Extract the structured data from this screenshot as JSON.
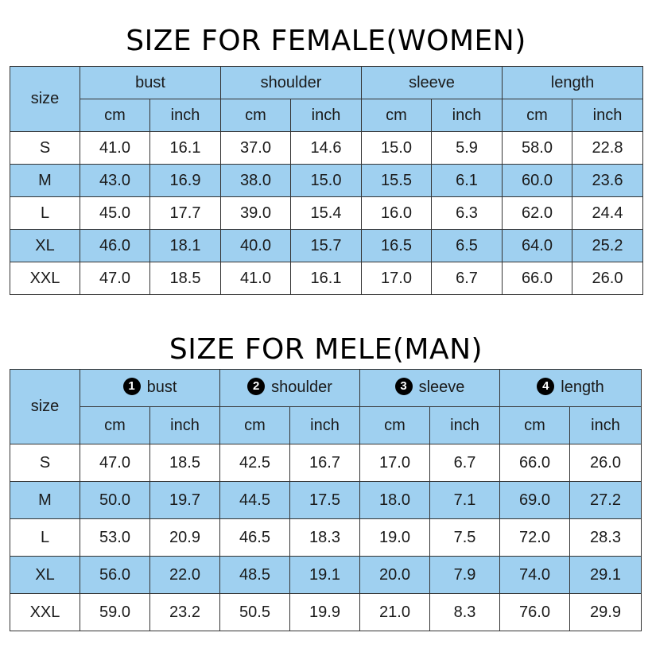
{
  "female": {
    "title": "SIZE FOR FEMALE(WOMEN)",
    "size_header": "size",
    "groups": [
      {
        "label": "bust"
      },
      {
        "label": "shoulder"
      },
      {
        "label": "sleeve"
      },
      {
        "label": "length"
      }
    ],
    "units": [
      "cm",
      "inch",
      "cm",
      "inch",
      "cm",
      "inch",
      "cm",
      "inch"
    ],
    "rows": [
      {
        "size": "S",
        "values": [
          "41.0",
          "16.1",
          "37.0",
          "14.6",
          "15.0",
          "5.9",
          "58.0",
          "22.8"
        ]
      },
      {
        "size": "M",
        "values": [
          "43.0",
          "16.9",
          "38.0",
          "15.0",
          "15.5",
          "6.1",
          "60.0",
          "23.6"
        ]
      },
      {
        "size": "L",
        "values": [
          "45.0",
          "17.7",
          "39.0",
          "15.4",
          "16.0",
          "6.3",
          "62.0",
          "24.4"
        ]
      },
      {
        "size": "XL",
        "values": [
          "46.0",
          "18.1",
          "40.0",
          "15.7",
          "16.5",
          "6.5",
          "64.0",
          "25.2"
        ]
      },
      {
        "size": "XXL",
        "values": [
          "47.0",
          "18.5",
          "41.0",
          "16.1",
          "17.0",
          "6.7",
          "66.0",
          "26.0"
        ]
      }
    ]
  },
  "male": {
    "title": "SIZE FOR MELE(MAN)",
    "size_header": "size",
    "groups": [
      {
        "number": "1",
        "label": "bust"
      },
      {
        "number": "2",
        "label": "shoulder"
      },
      {
        "number": "3",
        "label": "sleeve"
      },
      {
        "number": "4",
        "label": "length"
      }
    ],
    "units": [
      "cm",
      "inch",
      "cm",
      "inch",
      "cm",
      "inch",
      "cm",
      "inch"
    ],
    "rows": [
      {
        "size": "S",
        "values": [
          "47.0",
          "18.5",
          "42.5",
          "16.7",
          "17.0",
          "6.7",
          "66.0",
          "26.0"
        ]
      },
      {
        "size": "M",
        "values": [
          "50.0",
          "19.7",
          "44.5",
          "17.5",
          "18.0",
          "7.1",
          "69.0",
          "27.2"
        ]
      },
      {
        "size": "L",
        "values": [
          "53.0",
          "20.9",
          "46.5",
          "18.3",
          "19.0",
          "7.5",
          "72.0",
          "28.3"
        ]
      },
      {
        "size": "XL",
        "values": [
          "56.0",
          "22.0",
          "48.5",
          "19.1",
          "20.0",
          "7.9",
          "74.0",
          "29.1"
        ]
      },
      {
        "size": "XXL",
        "values": [
          "59.0",
          "23.2",
          "50.5",
          "19.9",
          "21.0",
          "8.3",
          "76.0",
          "29.9"
        ]
      }
    ]
  },
  "colors": {
    "header_blue": "#9fd0f0",
    "row_blue": "#9fd0f0",
    "border": "#333333",
    "badge": "#000000"
  }
}
